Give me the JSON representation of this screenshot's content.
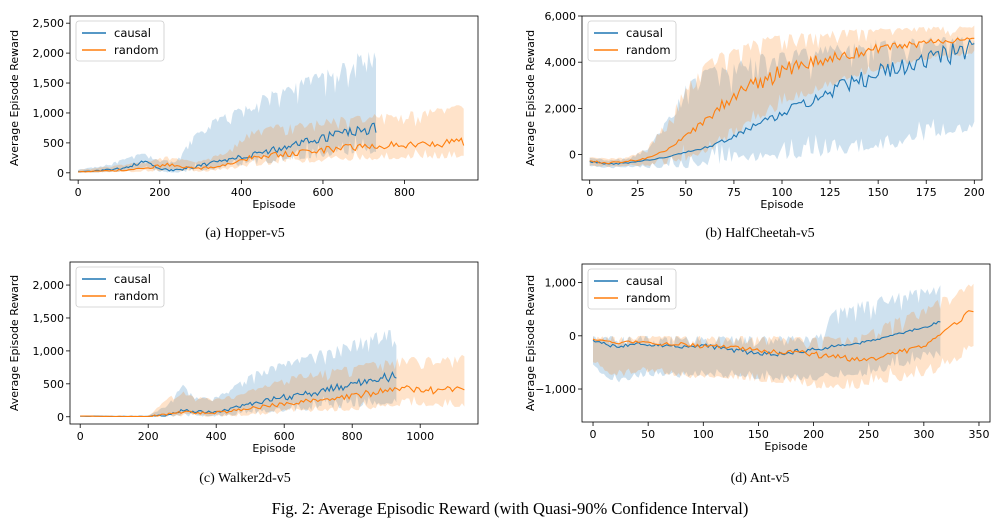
{
  "figure": {
    "caption": "Fig. 2: Average Episodic Reward (with Quasi-90% Confidence Interval)"
  },
  "colors": {
    "causal": "#1f77b4",
    "random": "#ff7f0e"
  },
  "chart_data": [
    {
      "id": "hopper",
      "type": "line",
      "caption": "(a) Hopper-v5",
      "xlabel": "Episode",
      "ylabel": "Average Episode Reward",
      "xlim": [
        -20,
        980
      ],
      "ylim": [
        -120,
        2620
      ],
      "xticks": [
        0,
        200,
        400,
        600,
        800
      ],
      "xticklabels": [
        "0",
        "200",
        "400",
        "600",
        "800"
      ],
      "yticks": [
        0,
        500,
        1000,
        1500,
        2000,
        2500
      ],
      "yticklabels": [
        "0",
        "500",
        "1,000",
        "1,500",
        "2,000",
        "2,500"
      ],
      "legend": {
        "position": "upper-left",
        "entries": [
          "causal",
          "random"
        ]
      },
      "series": [
        {
          "name": "causal",
          "x": [
            0,
            60,
            120,
            160,
            200,
            240,
            280,
            320,
            360,
            400,
            440,
            480,
            520,
            560,
            600,
            640,
            680,
            730
          ],
          "mean": [
            20,
            40,
            90,
            190,
            60,
            40,
            90,
            150,
            210,
            260,
            320,
            390,
            450,
            520,
            580,
            640,
            700,
            760
          ],
          "lower": [
            0,
            5,
            20,
            80,
            10,
            0,
            20,
            40,
            70,
            100,
            130,
            160,
            190,
            220,
            250,
            280,
            300,
            320
          ],
          "upper": [
            60,
            120,
            250,
            350,
            230,
            200,
            600,
            850,
            1000,
            1100,
            1300,
            1400,
            1500,
            1600,
            1700,
            1800,
            2000,
            2050
          ]
        },
        {
          "name": "random",
          "x": [
            0,
            60,
            120,
            180,
            220,
            260,
            300,
            360,
            420,
            480,
            540,
            600,
            660,
            720,
            780,
            840,
            900,
            945
          ],
          "mean": [
            15,
            30,
            50,
            90,
            140,
            100,
            70,
            130,
            250,
            300,
            330,
            380,
            420,
            440,
            460,
            480,
            500,
            510
          ],
          "lower": [
            0,
            5,
            10,
            20,
            40,
            20,
            10,
            40,
            100,
            140,
            160,
            180,
            200,
            210,
            220,
            230,
            240,
            250
          ],
          "upper": [
            50,
            100,
            150,
            220,
            280,
            220,
            200,
            350,
            700,
            800,
            850,
            900,
            950,
            980,
            1000,
            1050,
            1100,
            1150
          ]
        }
      ]
    },
    {
      "id": "halfcheetah",
      "type": "line",
      "caption": "(b) HalfCheetah-v5",
      "xlabel": "Episode",
      "ylabel": "Average Episode Reward",
      "xlim": [
        -4,
        204
      ],
      "ylim": [
        -1100,
        6000
      ],
      "xticks": [
        0,
        25,
        50,
        75,
        100,
        125,
        150,
        175,
        200
      ],
      "xticklabels": [
        "0",
        "25",
        "50",
        "75",
        "100",
        "125",
        "150",
        "175",
        "200"
      ],
      "yticks": [
        0,
        2000,
        4000,
        6000
      ],
      "yticklabels": [
        "0",
        "2,000",
        "4,000",
        "6,000"
      ],
      "legend": {
        "position": "upper-left",
        "entries": [
          "causal",
          "random"
        ]
      },
      "series": [
        {
          "name": "causal",
          "x": [
            0,
            10,
            20,
            30,
            40,
            50,
            60,
            70,
            80,
            90,
            100,
            110,
            120,
            130,
            140,
            150,
            160,
            170,
            180,
            190,
            200
          ],
          "mean": [
            -300,
            -400,
            -350,
            -250,
            -100,
            100,
            300,
            600,
            1000,
            1400,
            1800,
            2100,
            2500,
            2900,
            3200,
            3500,
            3800,
            4000,
            4200,
            4400,
            4600
          ],
          "lower": [
            -500,
            -600,
            -550,
            -600,
            -600,
            -600,
            -500,
            -400,
            -300,
            -300,
            -200,
            -200,
            -100,
            0,
            100,
            200,
            300,
            500,
            700,
            900,
            1000
          ],
          "upper": [
            -100,
            -200,
            -150,
            300,
            1500,
            3000,
            3700,
            4000,
            4200,
            4400,
            4500,
            4600,
            4700,
            4800,
            4900,
            5000,
            5050,
            5100,
            5100,
            5150,
            5150
          ]
        },
        {
          "name": "random",
          "x": [
            0,
            10,
            20,
            30,
            40,
            50,
            60,
            70,
            80,
            90,
            100,
            110,
            120,
            130,
            140,
            150,
            160,
            170,
            180,
            190,
            200
          ],
          "mean": [
            -300,
            -350,
            -300,
            -150,
            200,
            800,
            1500,
            2200,
            2800,
            3200,
            3600,
            3900,
            4100,
            4300,
            4450,
            4600,
            4700,
            4800,
            4850,
            4900,
            4950
          ],
          "lower": [
            -500,
            -550,
            -500,
            -500,
            -450,
            -300,
            0,
            500,
            1000,
            1500,
            2000,
            2400,
            2800,
            3100,
            3400,
            3600,
            3800,
            4000,
            4100,
            4200,
            4300
          ],
          "upper": [
            -100,
            -150,
            -100,
            300,
            1500,
            3000,
            4000,
            4600,
            4900,
            5100,
            5200,
            5300,
            5350,
            5400,
            5450,
            5500,
            5500,
            5550,
            5550,
            5550,
            5600
          ]
        }
      ]
    },
    {
      "id": "walker2d",
      "type": "line",
      "caption": "(c) Walker2d-v5",
      "xlabel": "Episode",
      "ylabel": "Average Episode Reward",
      "xlim": [
        -30,
        1170
      ],
      "ylim": [
        -110,
        2350
      ],
      "xticks": [
        0,
        200,
        400,
        600,
        800,
        1000
      ],
      "xticklabels": [
        "0",
        "200",
        "400",
        "600",
        "800",
        "1000"
      ],
      "yticks": [
        0,
        500,
        1000,
        1500,
        2000
      ],
      "yticklabels": [
        "0",
        "500",
        "1,000",
        "1,500",
        "2,000"
      ],
      "legend": {
        "position": "upper-left",
        "entries": [
          "causal",
          "random"
        ]
      },
      "series": [
        {
          "name": "causal",
          "x": [
            0,
            100,
            200,
            260,
            300,
            340,
            400,
            460,
            520,
            580,
            640,
            700,
            760,
            820,
            880,
            930
          ],
          "mean": [
            10,
            5,
            5,
            30,
            100,
            80,
            60,
            150,
            220,
            280,
            330,
            380,
            440,
            520,
            580,
            600
          ],
          "lower": [
            0,
            0,
            0,
            0,
            0,
            0,
            0,
            20,
            40,
            60,
            80,
            100,
            120,
            150,
            180,
            200
          ],
          "upper": [
            20,
            15,
            15,
            200,
            500,
            300,
            300,
            500,
            700,
            800,
            900,
            1000,
            1100,
            1200,
            1300,
            1350
          ]
        },
        {
          "name": "random",
          "x": [
            0,
            100,
            200,
            260,
            300,
            340,
            400,
            460,
            520,
            580,
            640,
            700,
            760,
            820,
            880,
            940,
            1000,
            1060,
            1130
          ],
          "mean": [
            10,
            5,
            5,
            40,
            70,
            60,
            60,
            100,
            140,
            180,
            220,
            250,
            280,
            330,
            380,
            420,
            410,
            400,
            410
          ],
          "lower": [
            0,
            0,
            0,
            0,
            0,
            0,
            0,
            0,
            20,
            40,
            60,
            70,
            80,
            100,
            120,
            150,
            150,
            140,
            150
          ],
          "upper": [
            20,
            15,
            15,
            300,
            400,
            300,
            280,
            350,
            450,
            550,
            650,
            700,
            750,
            800,
            850,
            900,
            920,
            900,
            950
          ]
        }
      ]
    },
    {
      "id": "ant",
      "type": "line",
      "caption": "(d) Ant-v5",
      "xlabel": "Episode",
      "ylabel": "Average Episode Reward",
      "xlim": [
        -10,
        360
      ],
      "ylim": [
        -1620,
        1350
      ],
      "xticks": [
        0,
        50,
        100,
        150,
        200,
        250,
        300,
        350
      ],
      "xticklabels": [
        "0",
        "50",
        "100",
        "150",
        "200",
        "250",
        "300",
        "350"
      ],
      "yticks": [
        -1000,
        0,
        1000
      ],
      "yticklabels": [
        "−1,000",
        "0",
        "1,000"
      ],
      "legend": {
        "position": "upper-left",
        "entries": [
          "causal",
          "random"
        ]
      },
      "series": [
        {
          "name": "causal",
          "x": [
            0,
            20,
            40,
            60,
            80,
            100,
            120,
            140,
            160,
            180,
            200,
            220,
            240,
            260,
            280,
            300,
            315
          ],
          "mean": [
            -100,
            -200,
            -150,
            -180,
            -220,
            -180,
            -250,
            -300,
            -350,
            -300,
            -250,
            -200,
            -150,
            -50,
            50,
            150,
            300
          ],
          "lower": [
            -600,
            -900,
            -800,
            -750,
            -800,
            -750,
            -800,
            -800,
            -850,
            -850,
            -850,
            -800,
            -800,
            -700,
            -600,
            -500,
            -450
          ],
          "upper": [
            0,
            0,
            0,
            0,
            0,
            0,
            0,
            0,
            0,
            0,
            0,
            500,
            650,
            750,
            850,
            900,
            950
          ]
        },
        {
          "name": "random",
          "x": [
            0,
            20,
            40,
            60,
            80,
            100,
            120,
            140,
            160,
            180,
            200,
            220,
            240,
            260,
            280,
            300,
            320,
            345
          ],
          "mean": [
            -50,
            -150,
            -100,
            -150,
            -150,
            -200,
            -200,
            -250,
            -300,
            -300,
            -350,
            -400,
            -450,
            -400,
            -300,
            -200,
            100,
            500
          ],
          "lower": [
            -500,
            -800,
            -700,
            -700,
            -800,
            -800,
            -800,
            -850,
            -900,
            -900,
            -1000,
            -1000,
            -1000,
            -900,
            -850,
            -800,
            -600,
            -300
          ],
          "upper": [
            0,
            0,
            0,
            0,
            0,
            0,
            0,
            0,
            0,
            0,
            0,
            0,
            0,
            200,
            400,
            600,
            800,
            1000
          ]
        }
      ]
    }
  ]
}
